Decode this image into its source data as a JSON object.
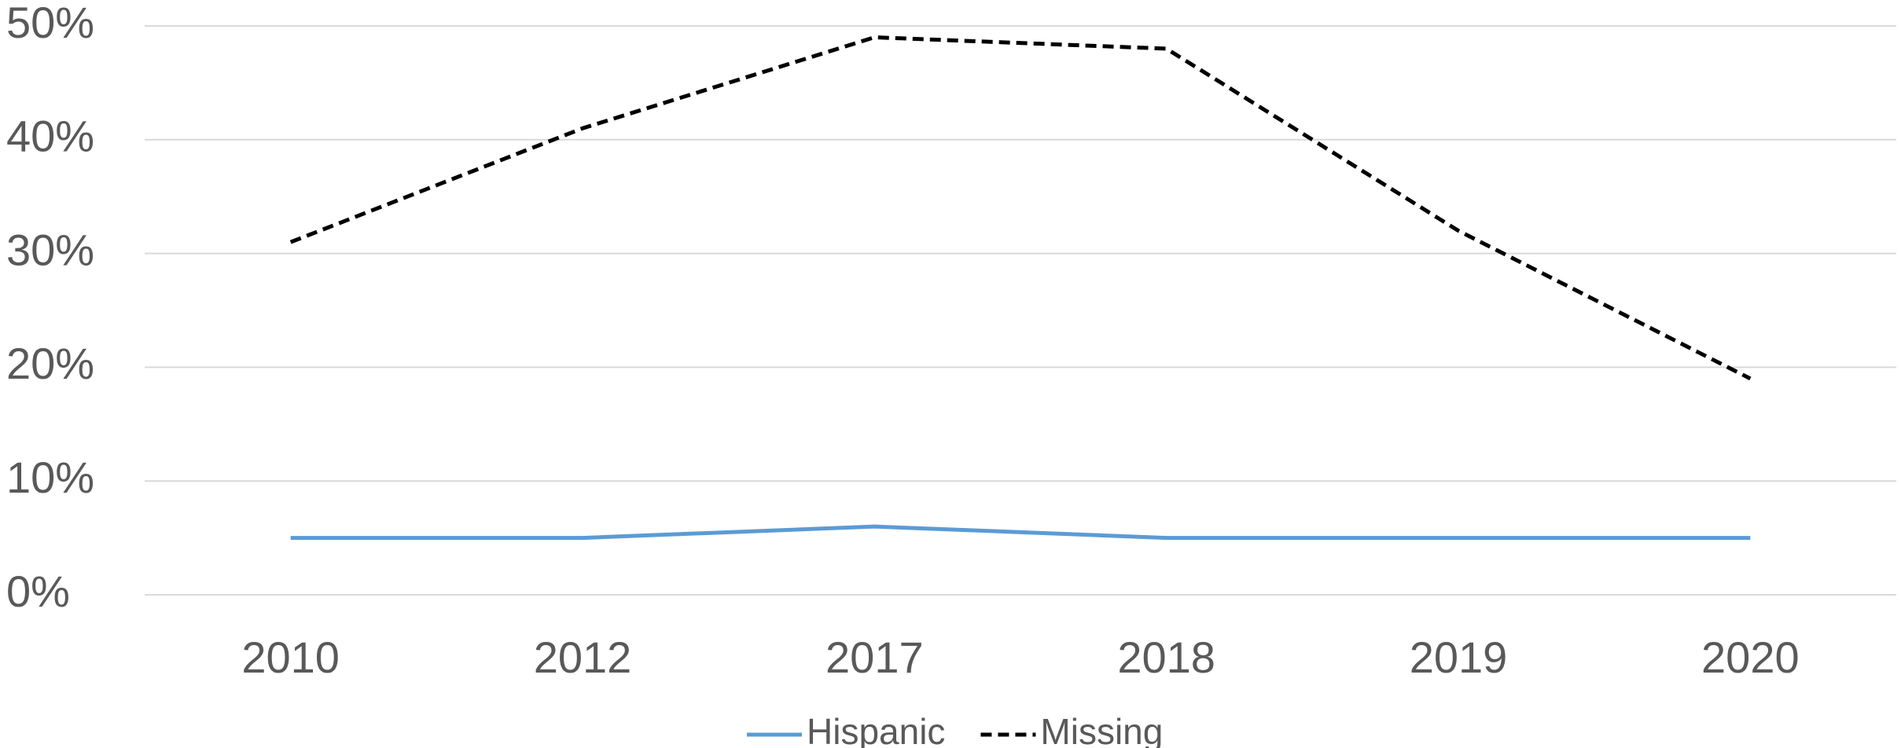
{
  "chart_data": {
    "type": "line",
    "categories": [
      "2010",
      "2012",
      "2017",
      "2018",
      "2019",
      "2020"
    ],
    "series": [
      {
        "name": "Hispanic",
        "color": "#5b9bd5",
        "line_style": "solid",
        "values": [
          5,
          5,
          6,
          5,
          5,
          5
        ]
      },
      {
        "name": "Missing",
        "color": "#000000",
        "line_style": "dashed",
        "values": [
          31,
          41,
          49,
          48,
          32,
          19
        ]
      }
    ],
    "ylim": [
      0,
      50
    ],
    "yticks": [
      {
        "value": 0,
        "label": "0%"
      },
      {
        "value": 10,
        "label": "10%"
      },
      {
        "value": 20,
        "label": "20%"
      },
      {
        "value": 30,
        "label": "30%"
      },
      {
        "value": 40,
        "label": "40%"
      },
      {
        "value": 50,
        "label": "50%"
      }
    ],
    "grid": true,
    "legend": "bottom"
  }
}
